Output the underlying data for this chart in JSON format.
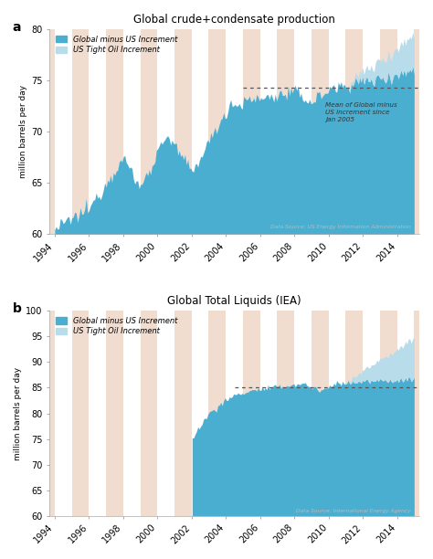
{
  "title_a": "Global crude+condensate production",
  "title_b": "Global Total Liquids (IEA)",
  "ylabel": "million barrels per day",
  "label_a": "a",
  "label_b": "b",
  "legend_line1": "Global minus US Increment",
  "legend_line2": "US Tight Oil Increment",
  "datasource_a": "Data Source: US Energy Information Administration",
  "datasource_b": "Data Source: International Energy Agency",
  "annotation_a": "Mean of Global minus\nUS increment since\nJan 2005",
  "color_dark_blue": "#4aaed0",
  "color_light_blue": "#b8dcea",
  "color_bg_peach": "#f0ddd0",
  "color_bg_white": "#ffffff",
  "xlim_start": 1993.7,
  "xlim_end": 2015.3,
  "ylim_a": [
    60,
    80
  ],
  "ylim_b": [
    60,
    100
  ],
  "yticks_a": [
    60,
    65,
    70,
    75,
    80
  ],
  "yticks_b": [
    60,
    65,
    70,
    75,
    80,
    85,
    90,
    95,
    100
  ],
  "xticks": [
    1994,
    1996,
    1998,
    2000,
    2002,
    2004,
    2006,
    2008,
    2010,
    2012,
    2014
  ],
  "mean_line_a": 74.3,
  "mean_line_b": 85.1,
  "mean_line_a_start": 2005.0,
  "mean_line_b_start": 2004.5,
  "iea_data_start": 2002.0
}
